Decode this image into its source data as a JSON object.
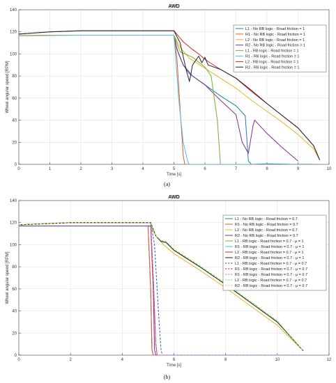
{
  "chart_data": [
    {
      "type": "line",
      "title": "AWD",
      "xlabel": "Time [s]",
      "ylabel": "Wheel angular speed [RPM]",
      "xlim": [
        0,
        10
      ],
      "ylim": [
        0,
        140
      ],
      "xticks": [
        0,
        1,
        2,
        3,
        4,
        5,
        6,
        7,
        8,
        9,
        10
      ],
      "yticks": [
        0,
        20,
        40,
        60,
        80,
        100,
        120,
        140
      ],
      "grid": true,
      "legend_position": "top-right",
      "subfigure_label": "(a)",
      "series": [
        {
          "name": "L1 - No RB logic - Road friction = 1",
          "color": "#1f77b4",
          "dash": "solid",
          "x": [
            0,
            1,
            2,
            3,
            4,
            5,
            5.05,
            5.15,
            5.3,
            5.5,
            6,
            6.5,
            7,
            7.3,
            7.4,
            7.5,
            8,
            9,
            9.5
          ],
          "y": [
            117,
            117,
            117,
            117,
            117,
            117,
            110,
            100,
            90,
            82,
            72,
            62,
            53,
            44,
            3,
            0,
            0.5,
            0,
            0
          ]
        },
        {
          "name": "R1 - No RB logic - Road friction = 1",
          "color": "#e8591f",
          "dash": "solid",
          "x": [
            0,
            1,
            2,
            3,
            4,
            5,
            5.1,
            5.2,
            5.3,
            5.35,
            6,
            7,
            8,
            9
          ],
          "y": [
            117,
            117,
            117,
            117,
            117,
            117,
            95,
            50,
            8,
            0,
            0,
            0,
            0,
            0
          ]
        },
        {
          "name": "L2 - No RB logic - Road friction = 1",
          "color": "#edb120",
          "dash": "solid",
          "x": [
            0,
            1,
            2,
            3,
            4,
            5,
            5.2,
            5.5,
            6,
            6.5,
            7,
            7.5,
            8,
            8.5,
            9,
            9.5,
            9.7
          ],
          "y": [
            116,
            116.5,
            117,
            117,
            117,
            117,
            106,
            96,
            87,
            78,
            69,
            58,
            48,
            38,
            27,
            14,
            4
          ]
        },
        {
          "name": "R2 - No RB logic - Road friction = 1",
          "color": "#7e2f8e",
          "dash": "solid",
          "x": [
            0,
            1,
            2,
            3,
            4,
            5,
            5.1,
            5.3,
            5.6,
            6,
            6.5,
            7,
            7.2,
            7.4,
            7.55,
            7.6,
            8,
            8.5,
            9
          ],
          "y": [
            117,
            117,
            117,
            117,
            117,
            117,
            104,
            90,
            80,
            72,
            58,
            45,
            20,
            10,
            35,
            40,
            28,
            15,
            3
          ]
        },
        {
          "name": "L1 - RB logic - Road friction = 1",
          "color": "#77ac30",
          "dash": "solid",
          "x": [
            0,
            1,
            2,
            3,
            4,
            5,
            5.2,
            5.6,
            6,
            6.2,
            6.4,
            6.5,
            7,
            8,
            9
          ],
          "y": [
            117,
            117,
            117,
            117,
            117,
            117,
            102,
            97,
            88,
            80,
            40,
            0,
            0,
            0,
            0
          ]
        },
        {
          "name": "R1 - RB logic - Road friction = 1",
          "color": "#4dbeee",
          "dash": "solid",
          "x": [
            0,
            1,
            2,
            3,
            4,
            5,
            5.05,
            5.15,
            5.3,
            5.45,
            5.5,
            6,
            7,
            8,
            9
          ],
          "y": [
            117,
            117,
            117,
            117,
            117,
            117,
            100,
            60,
            20,
            2,
            0,
            0,
            0,
            0,
            0
          ]
        },
        {
          "name": "L2 - RB logic - Road friction = 1",
          "color": "#d62728",
          "dash": "solid",
          "x": [
            0,
            1,
            2,
            3,
            4,
            5,
            5.3,
            5.6,
            5.8,
            6,
            6.5,
            7,
            7.5,
            8,
            8.5,
            9,
            9.5,
            9.7
          ],
          "y": [
            118,
            120,
            121,
            121,
            121,
            121,
            111,
            104,
            100,
            95,
            86,
            78,
            66,
            55,
            44,
            33,
            17,
            4
          ]
        },
        {
          "name": "R2 - RB logic - Road friction = 1",
          "color": "#222222",
          "dash": "solid",
          "x": [
            0,
            1,
            2,
            3,
            4,
            5,
            5.2,
            5.4,
            5.5,
            5.6,
            5.8,
            5.9,
            6,
            6.1,
            6.3,
            6.5,
            7,
            7.5,
            8,
            8.5,
            9,
            9.5,
            9.7
          ],
          "y": [
            118,
            120,
            121,
            121,
            121,
            121,
            110,
            85,
            75,
            90,
            98,
            92,
            97,
            90,
            88,
            86,
            78,
            67,
            55,
            44,
            33,
            17,
            4
          ]
        }
      ]
    },
    {
      "type": "line",
      "title": "AWD",
      "xlabel": "Time [s]",
      "ylabel": "Wheel angular speed [RPM]",
      "xlim": [
        0,
        12
      ],
      "ylim": [
        0,
        140
      ],
      "xticks": [
        0,
        2,
        4,
        6,
        8,
        10,
        12
      ],
      "yticks": [
        0,
        20,
        40,
        60,
        80,
        100,
        120,
        140
      ],
      "grid": true,
      "legend_position": "top-right",
      "subfigure_label": "(b)",
      "series": [
        {
          "name": "L1 - No RB logic - Road friction = 0.7",
          "color": "#1f77b4",
          "dash": "solid",
          "x": [
            0,
            2,
            4,
            5,
            5.1,
            5.15,
            5.2,
            5.3,
            6,
            8,
            10,
            11
          ],
          "y": [
            117,
            117,
            117,
            117,
            60,
            5,
            0,
            0,
            0,
            0,
            0,
            0
          ]
        },
        {
          "name": "R1 - No RB logic - Road friction = 0.7",
          "color": "#e8591f",
          "dash": "solid",
          "x": [
            0,
            2,
            4,
            5,
            5.1,
            5.15,
            5.2,
            5.3,
            6,
            8,
            10,
            11
          ],
          "y": [
            117,
            117,
            117,
            117,
            60,
            5,
            0,
            0,
            0,
            0,
            0,
            0
          ]
        },
        {
          "name": "L2 - No RB logic - Road friction = 0.7",
          "color": "#edb120",
          "dash": "solid",
          "x": [
            0,
            2,
            4,
            5.1,
            5.3,
            5.6,
            6,
            7,
            8,
            9,
            10,
            11
          ],
          "y": [
            117,
            117,
            117,
            117,
            108,
            100,
            92,
            77,
            61,
            44,
            27,
            4
          ]
        },
        {
          "name": "R2 - No RB logic - Road friction = 0.7",
          "color": "#7e2f8e",
          "dash": "solid",
          "x": [
            0,
            2,
            4,
            5.1,
            5.2,
            5.25,
            5.3,
            6,
            8,
            10,
            11
          ],
          "y": [
            117,
            117,
            117,
            117,
            60,
            5,
            0,
            0,
            0,
            0,
            0
          ]
        },
        {
          "name": "L1 - RB logic - Road friction = 0.7 - μ = 1",
          "color": "#77ac30",
          "dash": "solid",
          "x": [
            0,
            2,
            4,
            5.1,
            5.3,
            5.5,
            5.7,
            6,
            7,
            8,
            9,
            10,
            11
          ],
          "y": [
            118,
            120,
            120,
            120,
            108,
            103,
            102,
            95,
            80,
            64,
            47,
            30,
            4
          ]
        },
        {
          "name": "R1 - RB logic - Road friction = 0.7 - μ = 1",
          "color": "#4dbeee",
          "dash": "solid",
          "x": [
            0,
            2,
            4,
            5.1,
            5.3,
            5.5,
            5.7,
            6,
            7,
            8,
            9,
            10,
            11
          ],
          "y": [
            118,
            120,
            120,
            120,
            108,
            103,
            102,
            95,
            80,
            64,
            47,
            30,
            4
          ]
        },
        {
          "name": "L2 - RB logic - Road friction = 0.7 - μ = 1",
          "color": "#d62728",
          "dash": "solid",
          "x": [
            0,
            2,
            4,
            5.1,
            5.2,
            5.3,
            5.35,
            6,
            8,
            10,
            11
          ],
          "y": [
            118,
            120,
            120,
            120,
            70,
            10,
            0,
            0,
            0,
            0,
            0
          ]
        },
        {
          "name": "R2 - RB logic - Road friction = 0.7 - μ = 1",
          "color": "#222222",
          "dash": "solid",
          "x": [
            0,
            2,
            4,
            5.1,
            5.3,
            5.5,
            5.7,
            6,
            7,
            8,
            9,
            10,
            11
          ],
          "y": [
            118,
            120,
            120,
            120,
            108,
            103,
            102,
            95,
            80,
            64,
            47,
            30,
            4
          ]
        },
        {
          "name": "L1 - RB logic - Road friction = 0.7 - μ = 0.7",
          "color": "#1f5fd6",
          "dash": "dashed",
          "x": [
            0,
            2,
            4,
            5.1,
            5.25,
            5.4,
            5.5,
            5.55,
            6,
            8,
            10,
            11
          ],
          "y": [
            118,
            120,
            120,
            120,
            100,
            40,
            5,
            0,
            0,
            0,
            0,
            0
          ]
        },
        {
          "name": "R1 - RB logic - Road friction = 0.7 - μ = 0.7",
          "color": "#d62728",
          "dash": "dashed",
          "x": [
            0,
            2,
            4,
            5.1,
            5.2,
            5.3,
            5.35,
            6,
            8,
            10,
            11
          ],
          "y": [
            118,
            120,
            120,
            120,
            70,
            10,
            0,
            0,
            0,
            0,
            0
          ]
        },
        {
          "name": "R1 - RB logic - Road friction = 0.7 - μ = 0.7",
          "color": "#d66edd",
          "dash": "dashed",
          "x": [
            0,
            2,
            4,
            5.1,
            5.2,
            5.3,
            5.35,
            6,
            8,
            10,
            11
          ],
          "y": [
            118,
            120,
            120,
            120,
            70,
            10,
            0,
            0,
            0,
            0,
            0
          ]
        },
        {
          "name": "L2 - RB logic - Road friction = 0.7 - μ = 0.7",
          "color": "#7fd6a8",
          "dash": "dashed",
          "x": [
            0,
            2,
            4,
            5.1,
            5.3,
            5.5,
            5.7,
            6,
            7,
            8,
            9,
            10,
            11
          ],
          "y": [
            118,
            120,
            120,
            120,
            108,
            104,
            103,
            96,
            81,
            65,
            48,
            31,
            4
          ]
        },
        {
          "name": "R2 - RB logic - Road friction = 0.7 - μ = 0.7",
          "color": "#b0e44a",
          "dash": "dashed",
          "x": [
            0,
            2,
            4,
            5.1,
            5.3,
            5.5,
            5.7,
            6,
            7,
            8,
            9,
            10,
            11
          ],
          "y": [
            118,
            120,
            120,
            120,
            108,
            104,
            103,
            96,
            81,
            65,
            48,
            31,
            4
          ]
        }
      ]
    }
  ]
}
